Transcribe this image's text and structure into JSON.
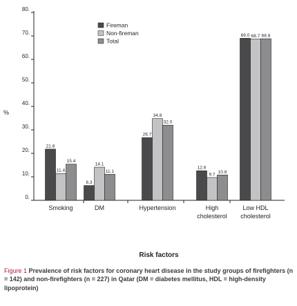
{
  "chart_data": {
    "type": "bar",
    "categories": [
      [
        "Smoking"
      ],
      [
        "DM"
      ],
      [
        "Hypertension"
      ],
      [
        "High",
        "cholesterol"
      ],
      [
        "Low HDL",
        "cholesterol"
      ]
    ],
    "series": [
      {
        "name": "Fireman",
        "color": "#4a4a4c",
        "values": [
          21.8,
          6.3,
          26.7,
          12.6,
          69.0
        ],
        "labels": [
          "21.8",
          "6.3",
          "26.7",
          "12.6",
          "69.0"
        ]
      },
      {
        "name": "Non-fireman",
        "color": "#c3c3c5",
        "values": [
          11.4,
          14.1,
          34.8,
          9.7,
          68.7
        ],
        "labels": [
          "11.4",
          "14.1",
          "34.8",
          "9.7",
          "68.7"
        ]
      },
      {
        "name": "Total",
        "color": "#8d8d90",
        "values": [
          15.4,
          11.1,
          32.0,
          10.8,
          68.8
        ],
        "labels": [
          "15.4",
          "11.1",
          "32.0",
          "10.8",
          "68.8"
        ]
      }
    ],
    "ylabel": "%",
    "xlabel": "Risk factors",
    "ylim": [
      0,
      80
    ],
    "yticks": [
      "0",
      "10",
      "20",
      "30",
      "40",
      "50",
      "60",
      "70",
      "80"
    ],
    "legend_position": "top-left",
    "grid": false
  },
  "caption": {
    "lead": "Figure 1",
    "text": "Prevalence of risk factors for coronary heart disease in the study groups of firefighters (n = 142) and non-firefighters (n = 227) in Qatar (DM = diabetes mellitus, HDL = high-density lipoprotein)"
  }
}
